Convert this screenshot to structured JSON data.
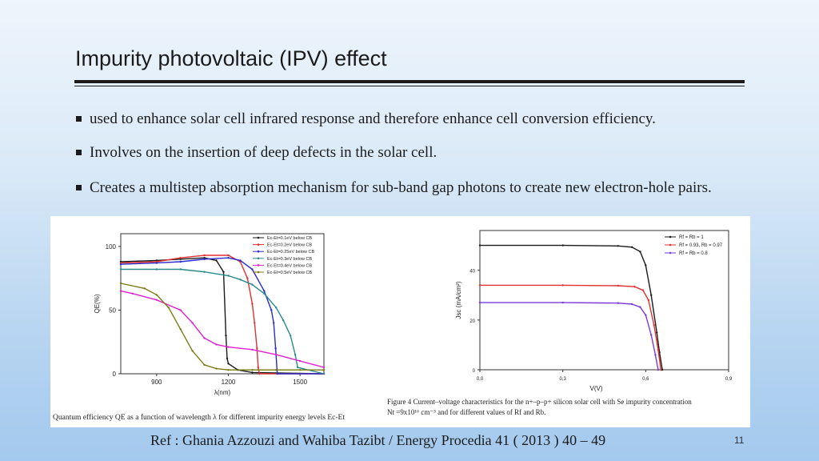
{
  "slide": {
    "title": "Impurity photovoltaic (IPV) effect",
    "bullets": [
      "used to enhance solar cell infrared response and therefore enhance cell conversion efficiency.",
      "Involves on the insertion of deep defects in the solar cell.",
      "Creates a multistep absorption mechanism for sub-band gap photons to create new electron-hole pairs."
    ],
    "reference": "Ref : Ghania Azzouzi and Wahiba Tazibt / Energy Procedia 41 ( 2013 ) 40 – 49",
    "page_number": "11",
    "left_caption": "Quantum efficiency QE as a function of wavelength λ for different impurity energy levels Ec-Et",
    "right_caption_line1": "Figure 4 Current–voltage characteristics for the n+–p–p+ silicon solar cell with Se impurity concentration",
    "right_caption_line2": "Nt =9x10¹⁶ cm⁻³ and for different values of Rf and Rb."
  },
  "chart_data": [
    {
      "type": "line",
      "xlabel": "λ(nm)",
      "ylabel": "QE(%)",
      "xlim": [
        750,
        1600
      ],
      "ylim": [
        0,
        110
      ],
      "xticks": [
        900,
        1200,
        1500
      ],
      "yticks": [
        0,
        50,
        100
      ],
      "legend_position": "top-right",
      "series": [
        {
          "name": "Ec-Et=0.1eV   below CB",
          "color": "#1a1a1a",
          "x": [
            750,
            900,
            1000,
            1100,
            1150,
            1180,
            1190,
            1195,
            1200,
            1240,
            1300,
            1600
          ],
          "y": [
            88,
            89,
            90,
            91,
            89,
            80,
            30,
            12,
            8,
            3,
            1,
            0
          ]
        },
        {
          "name": "Ec-Et=0.2eV   below CB",
          "color": "#e03030",
          "x": [
            750,
            900,
            1000,
            1100,
            1200,
            1250,
            1280,
            1300,
            1310,
            1320,
            1325,
            1330,
            1600
          ],
          "y": [
            87,
            88,
            91,
            93,
            93,
            88,
            75,
            55,
            40,
            20,
            5,
            0,
            0
          ]
        },
        {
          "name": "Ec-Et=0.25eV   below CB",
          "color": "#2b2bd0",
          "x": [
            750,
            900,
            1000,
            1100,
            1200,
            1250,
            1300,
            1350,
            1380,
            1390,
            1398,
            1405,
            1600
          ],
          "y": [
            86,
            87,
            88,
            90,
            91,
            89,
            82,
            65,
            50,
            40,
            20,
            0,
            0
          ]
        },
        {
          "name": "Ec-Et=0.3eV   below CB",
          "color": "#2a8a8a",
          "x": [
            750,
            900,
            1000,
            1100,
            1200,
            1250,
            1300,
            1350,
            1400,
            1430,
            1460,
            1480,
            1490,
            1600
          ],
          "y": [
            82,
            82,
            82,
            80,
            77,
            74,
            70,
            63,
            52,
            42,
            30,
            15,
            5,
            0
          ]
        },
        {
          "name": "Ec-Et=0.4eV   below CB",
          "color": "#e020d0",
          "x": [
            750,
            800,
            900,
            1000,
            1050,
            1100,
            1150,
            1200,
            1300,
            1400,
            1500,
            1600
          ],
          "y": [
            65,
            63,
            58,
            50,
            40,
            28,
            23,
            21,
            19,
            15,
            10,
            5
          ]
        },
        {
          "name": "Ec-Et=0.5eV   below CB",
          "color": "#7a7a10",
          "x": [
            750,
            850,
            900,
            950,
            1000,
            1050,
            1100,
            1150,
            1200,
            1300,
            1400,
            1500,
            1600
          ],
          "y": [
            71,
            67,
            62,
            52,
            35,
            18,
            7,
            4,
            3,
            3,
            3,
            3,
            3
          ]
        }
      ]
    },
    {
      "type": "line",
      "xlabel": "V(V)",
      "ylabel": "Jsc (mA/cm²)",
      "xlim": [
        0,
        0.9
      ],
      "ylim": [
        0,
        56
      ],
      "xticks": [
        0.0,
        0.3,
        0.6,
        0.9
      ],
      "xtick_labels": [
        "0,0",
        "0,3",
        "0,6",
        "0,9"
      ],
      "yticks": [
        0,
        20,
        40
      ],
      "legend_position": "top-right",
      "series": [
        {
          "name": "Rf = Rb = 1",
          "color": "#1a1a1a",
          "x": [
            0,
            0.3,
            0.5,
            0.55,
            0.58,
            0.6,
            0.62,
            0.64,
            0.65,
            0.66
          ],
          "y": [
            50,
            50,
            49.8,
            49.3,
            47.5,
            42,
            30,
            15,
            7,
            0
          ]
        },
        {
          "name": "Rf = 0.93, Rb = 0.97",
          "color": "#e03030",
          "x": [
            0,
            0.3,
            0.5,
            0.56,
            0.59,
            0.61,
            0.63,
            0.645,
            0.655
          ],
          "y": [
            34,
            34,
            33.8,
            33.4,
            32,
            28,
            18,
            8,
            0
          ]
        },
        {
          "name": "Rf = Rb = 0.8",
          "color": "#7a3ad8",
          "x": [
            0,
            0.3,
            0.5,
            0.55,
            0.58,
            0.6,
            0.62,
            0.635,
            0.645
          ],
          "y": [
            27,
            27,
            26.8,
            26.4,
            25.2,
            22,
            14,
            6,
            0
          ]
        }
      ]
    }
  ]
}
